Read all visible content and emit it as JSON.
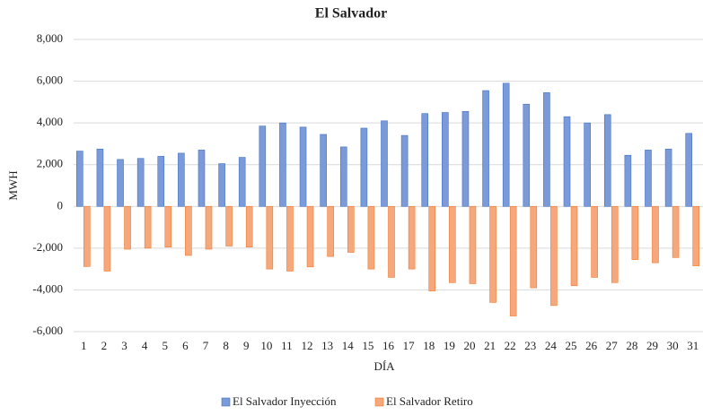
{
  "chart_data": {
    "type": "bar",
    "title": "El Salvador",
    "y_label": "MWH",
    "x_label": "DÍA",
    "categories": [
      "1",
      "2",
      "3",
      "4",
      "5",
      "6",
      "7",
      "8",
      "9",
      "10",
      "11",
      "12",
      "13",
      "14",
      "15",
      "16",
      "17",
      "18",
      "19",
      "20",
      "21",
      "22",
      "23",
      "24",
      "25",
      "26",
      "27",
      "28",
      "29",
      "30",
      "31"
    ],
    "series": [
      {
        "name": "El Salvador Inyección",
        "color": "#7b9ada",
        "values": [
          2650,
          2750,
          2250,
          2300,
          2400,
          2550,
          2700,
          2050,
          2350,
          3850,
          4000,
          3800,
          3450,
          2850,
          3750,
          4100,
          3400,
          4450,
          4500,
          4550,
          5550,
          5900,
          4900,
          5450,
          4300,
          4000,
          4400,
          2450,
          2700,
          2750,
          3500
        ]
      },
      {
        "name": "El Salvador Retiro",
        "color": "#f6a77c",
        "values": [
          -2880,
          -3100,
          -2050,
          -2000,
          -1950,
          -2350,
          -2050,
          -1900,
          -1950,
          -3000,
          -3100,
          -2900,
          -2400,
          -2200,
          -3000,
          -3400,
          -3000,
          -4050,
          -3650,
          -3700,
          -4600,
          -5250,
          -3900,
          -4750,
          -3800,
          -3400,
          -3650,
          -2550,
          -2700,
          -2450,
          -2850
        ]
      }
    ],
    "ylim": [
      -6000,
      8000
    ],
    "yticks": [
      {
        "value": -6000,
        "label": "-6,000"
      },
      {
        "value": -4000,
        "label": "-4,000"
      },
      {
        "value": -2000,
        "label": "-2,000"
      },
      0,
      {
        "value": 2000,
        "label": "2,000"
      },
      {
        "value": 4000,
        "label": "4,000"
      },
      {
        "value": 6000,
        "label": "6,000"
      },
      {
        "value": 8000,
        "label": "8,000"
      }
    ],
    "grid": true,
    "legend": "bottom"
  }
}
